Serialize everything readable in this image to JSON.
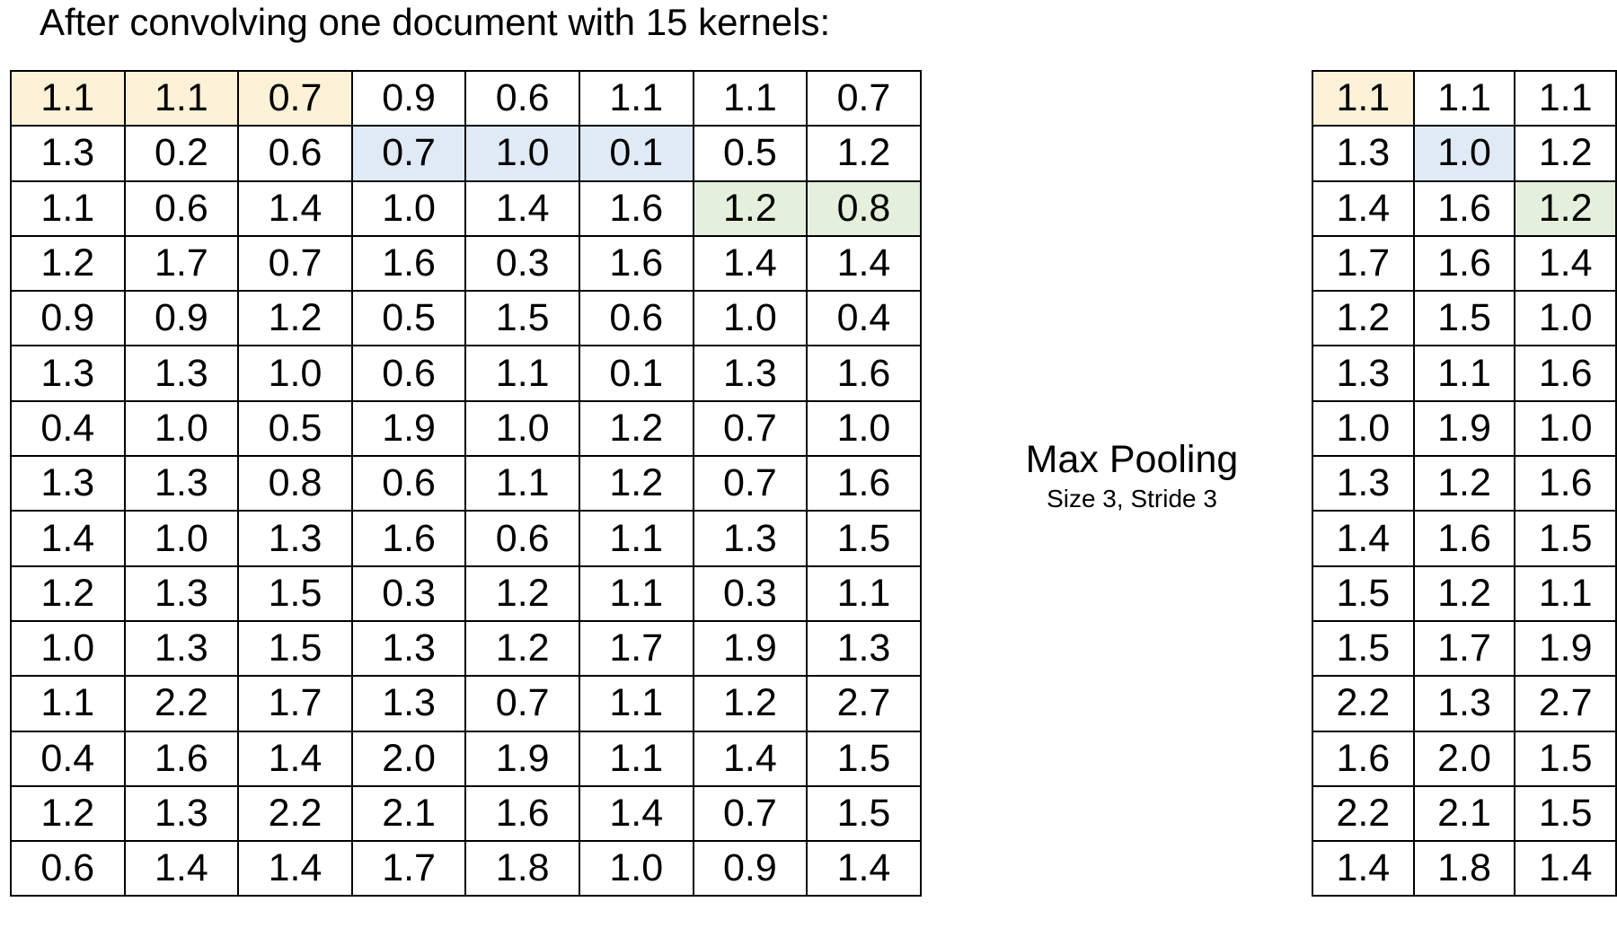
{
  "title": "After convolving one document with 15 kernels:",
  "pooling": {
    "label": "Max Pooling",
    "sublabel": "Size 3, Stride 3"
  },
  "colors": {
    "highlight_orange": "#fdf1d7",
    "highlight_blue": "#e0eaf6",
    "highlight_green": "#e4efdc"
  },
  "conv_matrix": [
    [
      "1.1",
      "1.1",
      "0.7",
      "0.9",
      "0.6",
      "1.1",
      "1.1",
      "0.7"
    ],
    [
      "1.3",
      "0.2",
      "0.6",
      "0.7",
      "1.0",
      "0.1",
      "0.5",
      "1.2"
    ],
    [
      "1.1",
      "0.6",
      "1.4",
      "1.0",
      "1.4",
      "1.6",
      "1.2",
      "0.8"
    ],
    [
      "1.2",
      "1.7",
      "0.7",
      "1.6",
      "0.3",
      "1.6",
      "1.4",
      "1.4"
    ],
    [
      "0.9",
      "0.9",
      "1.2",
      "0.5",
      "1.5",
      "0.6",
      "1.0",
      "0.4"
    ],
    [
      "1.3",
      "1.3",
      "1.0",
      "0.6",
      "1.1",
      "0.1",
      "1.3",
      "1.6"
    ],
    [
      "0.4",
      "1.0",
      "0.5",
      "1.9",
      "1.0",
      "1.2",
      "0.7",
      "1.0"
    ],
    [
      "1.3",
      "1.3",
      "0.8",
      "0.6",
      "1.1",
      "1.2",
      "0.7",
      "1.6"
    ],
    [
      "1.4",
      "1.0",
      "1.3",
      "1.6",
      "0.6",
      "1.1",
      "1.3",
      "1.5"
    ],
    [
      "1.2",
      "1.3",
      "1.5",
      "0.3",
      "1.2",
      "1.1",
      "0.3",
      "1.1"
    ],
    [
      "1.0",
      "1.3",
      "1.5",
      "1.3",
      "1.2",
      "1.7",
      "1.9",
      "1.3"
    ],
    [
      "1.1",
      "2.2",
      "1.7",
      "1.3",
      "0.7",
      "1.1",
      "1.2",
      "2.7"
    ],
    [
      "0.4",
      "1.6",
      "1.4",
      "2.0",
      "1.9",
      "1.1",
      "1.4",
      "1.5"
    ],
    [
      "1.2",
      "1.3",
      "2.2",
      "2.1",
      "1.6",
      "1.4",
      "0.7",
      "1.5"
    ],
    [
      "0.6",
      "1.4",
      "1.4",
      "1.7",
      "1.8",
      "1.0",
      "0.9",
      "1.4"
    ]
  ],
  "conv_highlights": [
    {
      "row": 0,
      "cols": [
        0,
        1,
        2
      ],
      "color": "orange"
    },
    {
      "row": 1,
      "cols": [
        3,
        4,
        5
      ],
      "color": "blue"
    },
    {
      "row": 2,
      "cols": [
        6,
        7
      ],
      "color": "green"
    }
  ],
  "pool_matrix": [
    [
      "1.1",
      "1.1",
      "1.1"
    ],
    [
      "1.3",
      "1.0",
      "1.2"
    ],
    [
      "1.4",
      "1.6",
      "1.2"
    ],
    [
      "1.7",
      "1.6",
      "1.4"
    ],
    [
      "1.2",
      "1.5",
      "1.0"
    ],
    [
      "1.3",
      "1.1",
      "1.6"
    ],
    [
      "1.0",
      "1.9",
      "1.0"
    ],
    [
      "1.3",
      "1.2",
      "1.6"
    ],
    [
      "1.4",
      "1.6",
      "1.5"
    ],
    [
      "1.5",
      "1.2",
      "1.1"
    ],
    [
      "1.5",
      "1.7",
      "1.9"
    ],
    [
      "2.2",
      "1.3",
      "2.7"
    ],
    [
      "1.6",
      "2.0",
      "1.5"
    ],
    [
      "2.2",
      "2.1",
      "1.5"
    ],
    [
      "1.4",
      "1.8",
      "1.4"
    ]
  ],
  "pool_highlights": [
    {
      "row": 0,
      "cols": [
        0
      ],
      "color": "orange"
    },
    {
      "row": 1,
      "cols": [
        1
      ],
      "color": "blue"
    },
    {
      "row": 2,
      "cols": [
        2
      ],
      "color": "green"
    }
  ]
}
